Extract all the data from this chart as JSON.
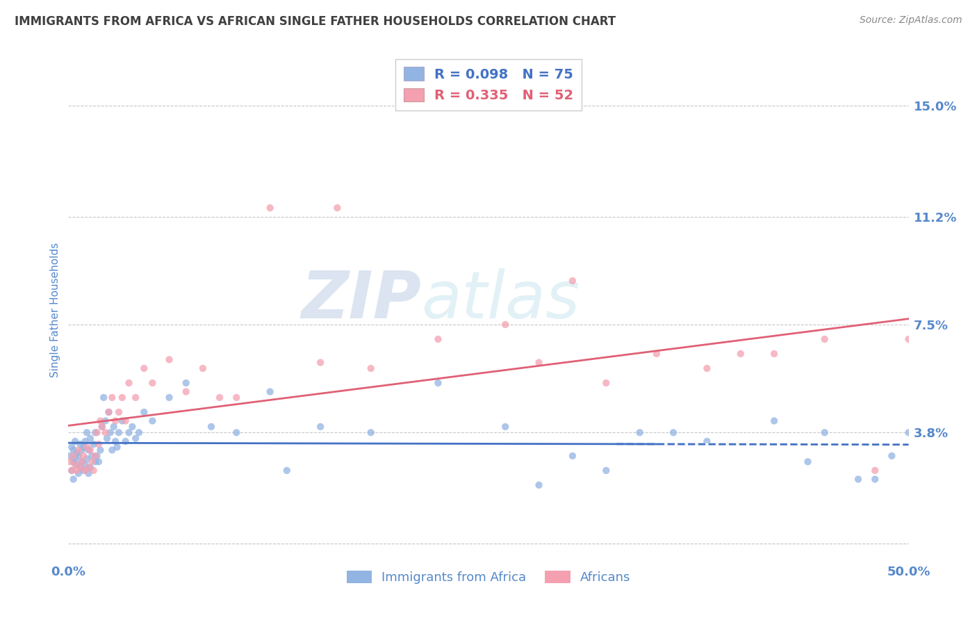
{
  "title": "IMMIGRANTS FROM AFRICA VS AFRICAN SINGLE FATHER HOUSEHOLDS CORRELATION CHART",
  "source": "Source: ZipAtlas.com",
  "ylabel": "Single Father Households",
  "series1_label": "Immigrants from Africa",
  "series2_label": "Africans",
  "R1": 0.098,
  "N1": 75,
  "R2": 0.335,
  "N2": 52,
  "xlim": [
    0.0,
    0.5
  ],
  "ylim": [
    -0.005,
    0.165
  ],
  "yticks": [
    0.0,
    0.038,
    0.075,
    0.112,
    0.15
  ],
  "ytick_labels": [
    "",
    "3.8%",
    "7.5%",
    "11.2%",
    "15.0%"
  ],
  "xtick_labels": [
    "0.0%",
    "50.0%"
  ],
  "watermark_zip": "ZIP",
  "watermark_atlas": "atlas",
  "color1": "#92b4e3",
  "color2": "#f4a0b0",
  "line1_color": "#4472c4",
  "line2_color": "#e06075",
  "background_color": "#ffffff",
  "grid_color": "#c8c8c8",
  "title_color": "#404040",
  "axis_label_color": "#5588cc",
  "legend_text_color1": "#4472c4",
  "legend_text_color2": "#e06075",
  "series1_x": [
    0.001,
    0.002,
    0.002,
    0.003,
    0.003,
    0.003,
    0.004,
    0.004,
    0.005,
    0.005,
    0.006,
    0.006,
    0.007,
    0.007,
    0.008,
    0.008,
    0.009,
    0.009,
    0.01,
    0.01,
    0.011,
    0.011,
    0.012,
    0.012,
    0.013,
    0.013,
    0.014,
    0.015,
    0.016,
    0.016,
    0.017,
    0.018,
    0.019,
    0.02,
    0.021,
    0.022,
    0.023,
    0.024,
    0.025,
    0.026,
    0.027,
    0.028,
    0.029,
    0.03,
    0.032,
    0.034,
    0.036,
    0.038,
    0.04,
    0.042,
    0.045,
    0.05,
    0.06,
    0.07,
    0.085,
    0.1,
    0.12,
    0.15,
    0.18,
    0.22,
    0.26,
    0.3,
    0.34,
    0.38,
    0.42,
    0.45,
    0.47,
    0.49,
    0.5,
    0.13,
    0.28,
    0.32,
    0.36,
    0.48,
    0.44
  ],
  "series1_y": [
    0.03,
    0.025,
    0.033,
    0.028,
    0.032,
    0.022,
    0.029,
    0.035,
    0.027,
    0.031,
    0.024,
    0.03,
    0.026,
    0.034,
    0.028,
    0.032,
    0.025,
    0.033,
    0.027,
    0.035,
    0.029,
    0.038,
    0.024,
    0.032,
    0.026,
    0.036,
    0.03,
    0.034,
    0.028,
    0.038,
    0.03,
    0.028,
    0.032,
    0.04,
    0.05,
    0.042,
    0.036,
    0.045,
    0.038,
    0.032,
    0.04,
    0.035,
    0.033,
    0.038,
    0.042,
    0.035,
    0.038,
    0.04,
    0.036,
    0.038,
    0.045,
    0.042,
    0.05,
    0.055,
    0.04,
    0.038,
    0.052,
    0.04,
    0.038,
    0.055,
    0.04,
    0.03,
    0.038,
    0.035,
    0.042,
    0.038,
    0.022,
    0.03,
    0.038,
    0.025,
    0.02,
    0.025,
    0.038,
    0.022,
    0.028
  ],
  "series2_x": [
    0.001,
    0.002,
    0.003,
    0.004,
    0.005,
    0.006,
    0.007,
    0.008,
    0.009,
    0.01,
    0.011,
    0.012,
    0.013,
    0.014,
    0.015,
    0.016,
    0.017,
    0.018,
    0.019,
    0.02,
    0.022,
    0.024,
    0.026,
    0.028,
    0.03,
    0.032,
    0.034,
    0.036,
    0.04,
    0.045,
    0.05,
    0.06,
    0.07,
    0.08,
    0.1,
    0.12,
    0.15,
    0.18,
    0.22,
    0.26,
    0.3,
    0.35,
    0.4,
    0.45,
    0.48,
    0.5,
    0.38,
    0.42,
    0.32,
    0.28,
    0.16,
    0.09
  ],
  "series2_y": [
    0.028,
    0.025,
    0.03,
    0.027,
    0.025,
    0.032,
    0.026,
    0.028,
    0.03,
    0.025,
    0.033,
    0.026,
    0.032,
    0.028,
    0.025,
    0.03,
    0.038,
    0.034,
    0.042,
    0.04,
    0.038,
    0.045,
    0.05,
    0.042,
    0.045,
    0.05,
    0.042,
    0.055,
    0.05,
    0.06,
    0.055,
    0.063,
    0.052,
    0.06,
    0.05,
    0.115,
    0.062,
    0.06,
    0.07,
    0.075,
    0.09,
    0.065,
    0.065,
    0.07,
    0.025,
    0.07,
    0.06,
    0.065,
    0.055,
    0.062,
    0.115,
    0.05
  ]
}
